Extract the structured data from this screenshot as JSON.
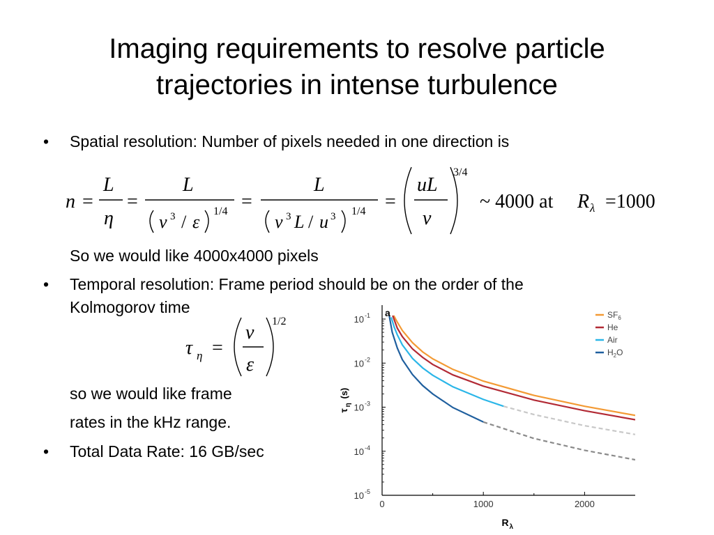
{
  "title": {
    "line1": "Imaging requirements to resolve particle",
    "line2": "trajectories in intense turbulence"
  },
  "bullets": {
    "spatial": "Spatial resolution:  Number of pixels needed in one direction is",
    "spatial_followup": "So we would like 4000x4000 pixels",
    "temporal_line1": "Temporal resolution:  Frame period should be on the order of the",
    "temporal_line2": "Kolmogorov time",
    "frame_line1": "so we would like frame",
    "frame_line2": "rates in the kHz range.",
    "data_rate": "Total Data Rate:  16 GB/sec"
  },
  "equation_n": {
    "lhs": "n",
    "L": "L",
    "eta": "η",
    "nu": "ν",
    "eps": "ε",
    "u": "u",
    "uL": "uL",
    "exp_quarter": "1/4",
    "exp_three_quarter": "3/4",
    "cube": "3",
    "slash": "/",
    "equals": "=",
    "tail": "~ 4000 at",
    "R": "R",
    "lambda_sub": "λ",
    "tail_value": "=1000"
  },
  "equation_tau": {
    "tau": "τ",
    "eta_sub": "η",
    "equals": "=",
    "nu": "ν",
    "eps": "ε",
    "exponent": "1/2"
  },
  "chart_data": {
    "type": "line",
    "panel_label": "a",
    "xlabel": "R",
    "xlabel_sub": "λ",
    "ylabel": "τ",
    "ylabel_sub": "η",
    "ylabel_unit": "(s)",
    "xlim": [
      0,
      2500
    ],
    "ylim": [
      1e-05,
      0.1
    ],
    "y_scale": "log",
    "x_ticks": [
      {
        "value": 0,
        "label": "0"
      },
      {
        "value": 1000,
        "label": "1000"
      },
      {
        "value": 2000,
        "label": "2000"
      }
    ],
    "y_ticks": [
      {
        "value": 0.1,
        "base": "10",
        "exp": "-1"
      },
      {
        "value": 0.01,
        "base": "10",
        "exp": "-2"
      },
      {
        "value": 0.001,
        "base": "10",
        "exp": "-3"
      },
      {
        "value": 0.0001,
        "base": "10",
        "exp": "-4"
      },
      {
        "value": 1e-05,
        "base": "10",
        "exp": "-5"
      }
    ],
    "legend_position": "top-right",
    "series": [
      {
        "name": "SF",
        "name_sub": "6",
        "color": "#f39a34",
        "solid_until": 2500,
        "dashed_color": "#f39a34",
        "x": [
          115,
          150,
          200,
          300,
          400,
          500,
          700,
          1000,
          1500,
          2000,
          2500
        ],
        "y": [
          0.12,
          0.085,
          0.055,
          0.029,
          0.018,
          0.0125,
          0.0072,
          0.0039,
          0.00185,
          0.00105,
          0.00065
        ]
      },
      {
        "name": "He",
        "name_sub": "",
        "color": "#b22a35",
        "solid_until": 2500,
        "dashed_color": "#b22a35",
        "x": [
          105,
          150,
          200,
          300,
          400,
          500,
          700,
          1000,
          1500,
          2000,
          2500
        ],
        "y": [
          0.12,
          0.062,
          0.04,
          0.021,
          0.0135,
          0.0093,
          0.0054,
          0.003,
          0.00145,
          0.00083,
          0.00052
        ]
      },
      {
        "name": "Air",
        "name_sub": "",
        "color": "#2bb6e8",
        "solid_until": 1200,
        "dashed_color": "#c8c8c8",
        "x": [
          90,
          120,
          150,
          200,
          300,
          400,
          500,
          700,
          1000,
          1200,
          1500,
          2000,
          2500
        ],
        "y": [
          0.11,
          0.065,
          0.044,
          0.026,
          0.0128,
          0.0078,
          0.0053,
          0.0029,
          0.0015,
          0.00105,
          0.00068,
          0.00038,
          0.00024
        ]
      },
      {
        "name": "H",
        "name_sub": "2",
        "name_suffix": "O",
        "color": "#1f5f9e",
        "solid_until": 1000,
        "dashed_color": "#8a8a8a",
        "x": [
          70,
          100,
          150,
          200,
          300,
          400,
          500,
          700,
          1000,
          1500,
          2000,
          2500
        ],
        "y": [
          0.12,
          0.05,
          0.022,
          0.012,
          0.0055,
          0.0031,
          0.002,
          0.00098,
          0.00046,
          0.000195,
          0.000105,
          6.4e-05
        ]
      }
    ]
  }
}
